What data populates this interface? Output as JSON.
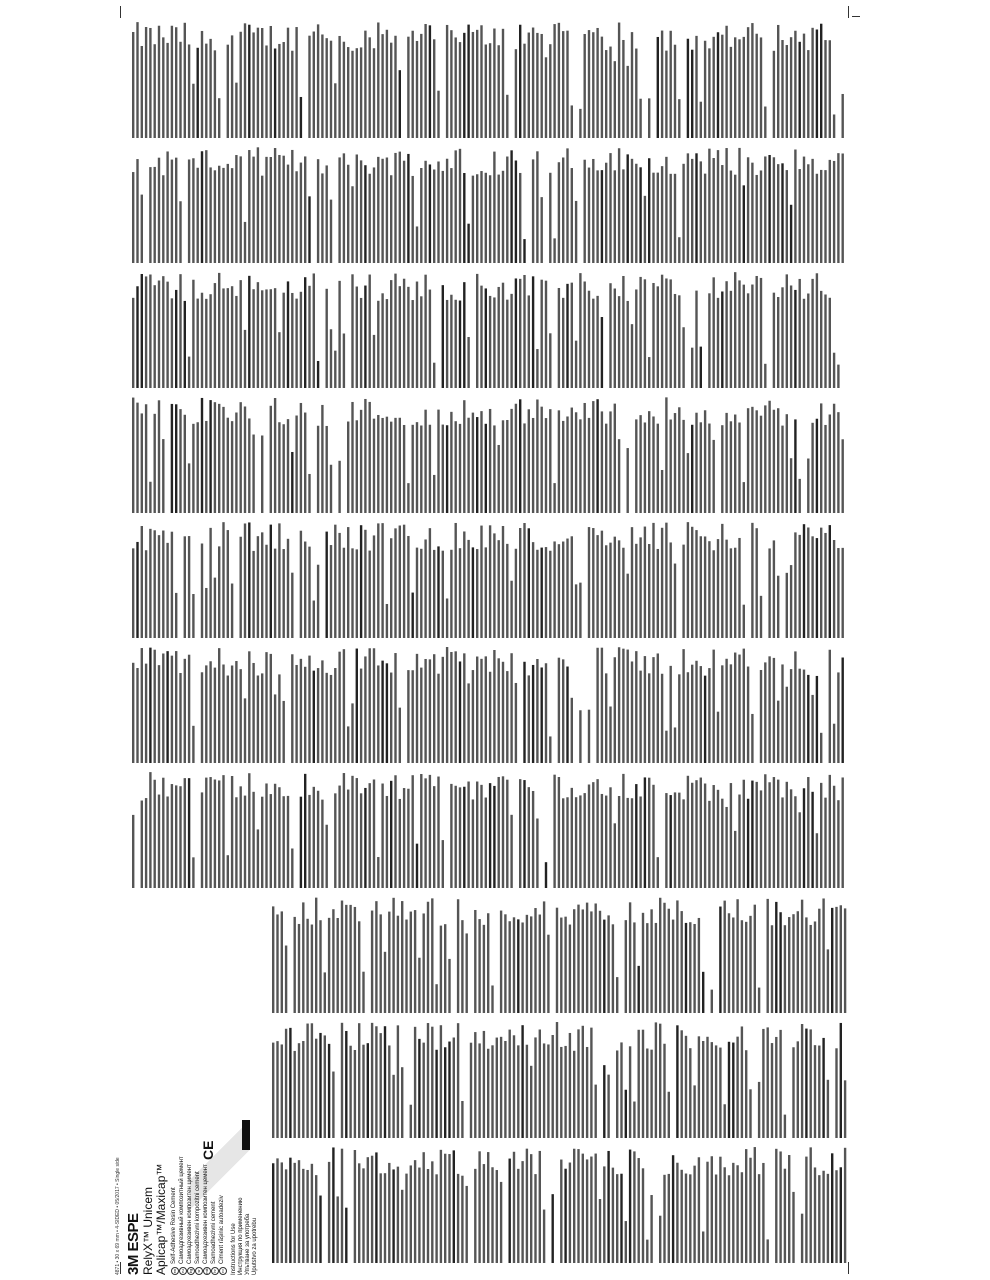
{
  "document": {
    "header_line": "4871 • 30 x 69 mm • 4-SIDED • 05/2017 • Single side",
    "brand": "3M ESPE",
    "product_name": "RelyX™ Unicem",
    "product_variant": "Aplicap™/Maxicap™",
    "languages": [
      {
        "code": "en",
        "label": "Self-Adhesive Resin Cement"
      },
      {
        "code": "ru",
        "label": "Самоадгезивный композитный цемент"
      },
      {
        "code": "bg",
        "label": "Самоадхезивен композитен цимент"
      },
      {
        "code": "sr",
        "label": "Samoadhezivni kompozitni cement"
      },
      {
        "code": "mk",
        "label": "Самоадхезивен композитен цемент"
      },
      {
        "code": "hr",
        "label": "Samoadhezivni cement"
      },
      {
        "code": "ro",
        "label": "Ciment rășinic autoadeziv"
      }
    ],
    "instructions": [
      "Instructions for Use",
      "Инструкция по применению",
      "Упътване за употреба",
      "Uputstvo za upotrebu"
    ],
    "ce_mark": "CE",
    "colors": {
      "text": "#111111",
      "background": "#ffffff"
    }
  }
}
